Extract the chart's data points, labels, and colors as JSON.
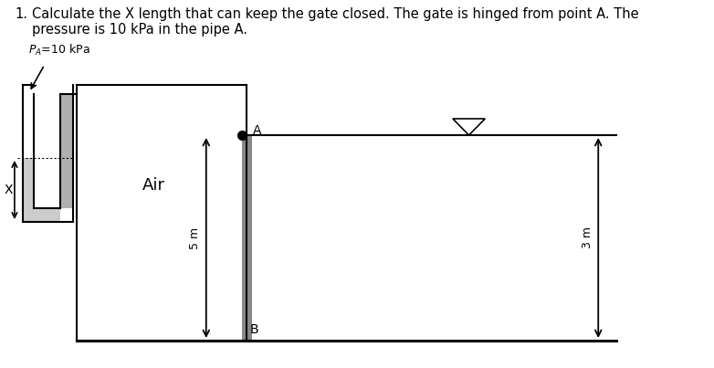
{
  "title_line1": "Calculate the X length that can keep the gate closed. The gate is hinged from point A. The",
  "title_line2": "pressure is 10 kPa in the pipe A.",
  "title_number": "1.",
  "title_fontsize": 10.5,
  "background_color": "#ffffff",
  "label_PA": "P",
  "label_PA_sub": "A",
  "label_PA_rest": "=10 kPa",
  "label_Air": "Air",
  "label_X": "X",
  "label_A": "A",
  "label_B": "B",
  "label_5m": "5 m",
  "label_3m": "3 m",
  "line_color": "#000000",
  "gate_color": "#888888",
  "light_gray": "#cccccc",
  "mid_gray": "#b0b0b0"
}
